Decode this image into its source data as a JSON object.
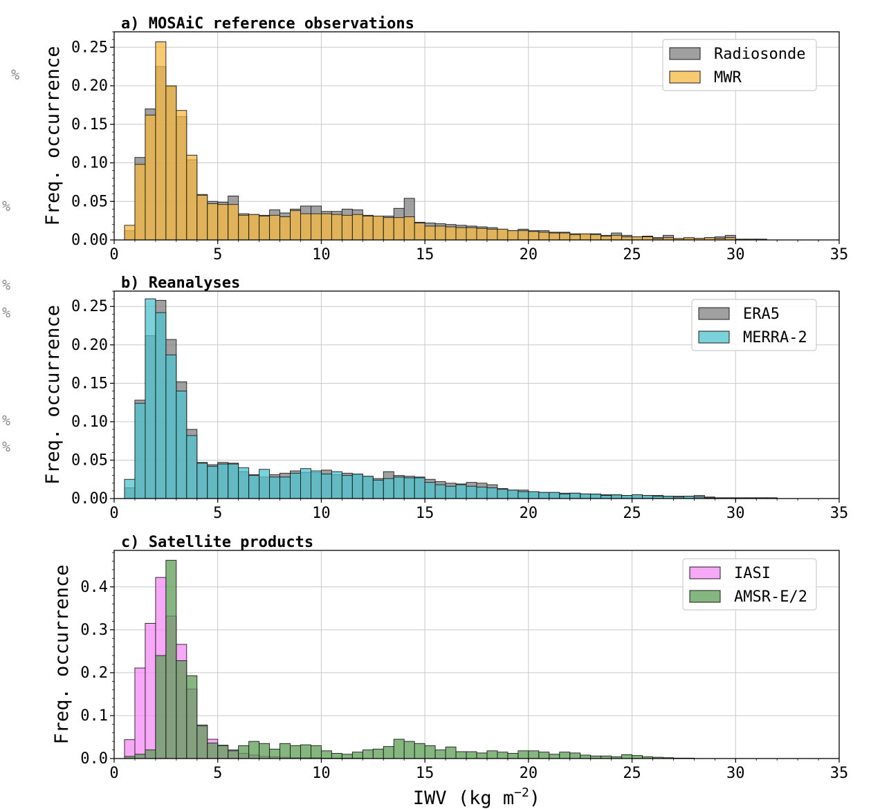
{
  "margin_marks": [
    ")  %",
    "%",
    "%",
    "%",
    "%",
    "%"
  ],
  "chart_data": [
    {
      "type": "bar",
      "title": "a) MOSAiC reference observations",
      "xlabel": "",
      "ylabel": "Freq. occurrence",
      "xlim": [
        0,
        35
      ],
      "ylim": [
        0,
        0.27
      ],
      "xticks": [
        "0",
        "5",
        "10",
        "15",
        "20",
        "25",
        "30",
        "35"
      ],
      "yticks": [
        "0.00",
        "0.05",
        "0.10",
        "0.15",
        "0.20",
        "0.25"
      ],
      "grid": true,
      "legend_position": "top-right",
      "bin_start": 0.5,
      "bin_width": 0.5,
      "series": [
        {
          "name": "Radiosonde",
          "color": "#808080",
          "values": [
            0.012,
            0.107,
            0.17,
            0.225,
            0.199,
            0.16,
            0.104,
            0.059,
            0.05,
            0.049,
            0.057,
            0.034,
            0.033,
            0.032,
            0.039,
            0.035,
            0.04,
            0.044,
            0.044,
            0.037,
            0.037,
            0.04,
            0.039,
            0.032,
            0.031,
            0.031,
            0.041,
            0.054,
            0.023,
            0.022,
            0.021,
            0.02,
            0.019,
            0.018,
            0.017,
            0.016,
            0.014,
            0.012,
            0.014,
            0.012,
            0.012,
            0.01,
            0.01,
            0.008,
            0.007,
            0.008,
            0.006,
            0.009,
            0.006,
            0.004,
            0.005,
            0.003,
            0.006,
            0.001,
            0.002,
            0.002,
            0.003,
            0.004,
            0.006,
            0.001,
            0.001,
            0.001
          ]
        },
        {
          "name": "MWR",
          "color": "#f5b841",
          "values": [
            0.019,
            0.098,
            0.162,
            0.257,
            0.2,
            0.168,
            0.11,
            0.058,
            0.047,
            0.046,
            0.046,
            0.032,
            0.033,
            0.031,
            0.032,
            0.03,
            0.038,
            0.034,
            0.034,
            0.034,
            0.033,
            0.032,
            0.033,
            0.031,
            0.031,
            0.029,
            0.029,
            0.03,
            0.022,
            0.018,
            0.018,
            0.017,
            0.016,
            0.016,
            0.015,
            0.014,
            0.014,
            0.012,
            0.012,
            0.011,
            0.01,
            0.009,
            0.009,
            0.007,
            0.008,
            0.007,
            0.005,
            0.006,
            0.004,
            0.004,
            0.004,
            0.002,
            0.003,
            0.002,
            0.003,
            0.002,
            0.003,
            0.002,
            0.003,
            0.001,
            0.001,
            0.001
          ]
        }
      ]
    },
    {
      "type": "bar",
      "title": "b) Reanalyses",
      "xlabel": "",
      "ylabel": "Freq. occurrence",
      "xlim": [
        0,
        35
      ],
      "ylim": [
        0,
        0.27
      ],
      "xticks": [
        "0",
        "5",
        "10",
        "15",
        "20",
        "25",
        "30",
        "35"
      ],
      "yticks": [
        "0.00",
        "0.05",
        "0.10",
        "0.15",
        "0.20",
        "0.25"
      ],
      "grid": true,
      "legend_position": "top-right",
      "bin_start": 0.5,
      "bin_width": 0.5,
      "series": [
        {
          "name": "ERA5",
          "color": "#808080",
          "values": [
            0.014,
            0.128,
            0.212,
            0.258,
            0.207,
            0.152,
            0.09,
            0.047,
            0.044,
            0.047,
            0.046,
            0.035,
            0.031,
            0.028,
            0.031,
            0.033,
            0.036,
            0.034,
            0.034,
            0.037,
            0.031,
            0.033,
            0.031,
            0.029,
            0.026,
            0.035,
            0.03,
            0.029,
            0.028,
            0.025,
            0.022,
            0.02,
            0.019,
            0.021,
            0.02,
            0.018,
            0.013,
            0.011,
            0.011,
            0.009,
            0.008,
            0.008,
            0.007,
            0.007,
            0.006,
            0.005,
            0.005,
            0.004,
            0.004,
            0.005,
            0.004,
            0.004,
            0.003,
            0.003,
            0.003,
            0.004,
            0.002,
            0.001,
            0.001,
            0.001,
            0.001,
            0.001,
            0.001
          ]
        },
        {
          "name": "MERRA-2",
          "color": "#4fc3cf",
          "values": [
            0.025,
            0.124,
            0.26,
            0.242,
            0.187,
            0.14,
            0.082,
            0.046,
            0.042,
            0.045,
            0.045,
            0.04,
            0.03,
            0.038,
            0.028,
            0.028,
            0.033,
            0.039,
            0.036,
            0.032,
            0.035,
            0.03,
            0.032,
            0.029,
            0.024,
            0.026,
            0.028,
            0.027,
            0.027,
            0.021,
            0.018,
            0.016,
            0.018,
            0.016,
            0.015,
            0.014,
            0.012,
            0.011,
            0.009,
            0.009,
            0.008,
            0.008,
            0.006,
            0.007,
            0.006,
            0.006,
            0.004,
            0.005,
            0.004,
            0.005,
            0.004,
            0.003,
            0.003,
            0.002,
            0.003,
            0.002,
            0.001,
            0.001,
            0.001,
            0.001,
            0.001,
            0.001,
            0.001
          ]
        }
      ]
    },
    {
      "type": "bar",
      "title": "c) Satellite products",
      "xlabel": "IWV (kg m⁻²)",
      "ylabel": "Freq. occurrence",
      "xlim": [
        0,
        35
      ],
      "ylim": [
        0,
        0.485
      ],
      "xticks": [
        "0",
        "5",
        "10",
        "15",
        "20",
        "25",
        "30",
        "35"
      ],
      "yticks": [
        "0.0",
        "0.1",
        "0.2",
        "0.3",
        "0.4"
      ],
      "grid": true,
      "legend_position": "top-right",
      "bin_start": 0.5,
      "bin_width": 0.5,
      "series": [
        {
          "name": "IASI",
          "color": "#f48cf4",
          "values": [
            0.044,
            0.211,
            0.315,
            0.422,
            0.332,
            0.266,
            0.162,
            0.078,
            0.045,
            0.031,
            0.02,
            0.012,
            0.008,
            0.005,
            0.004,
            0.003,
            0.002,
            0.002,
            0.002,
            0.001,
            0.001,
            0.001,
            0.001
          ]
        },
        {
          "name": "AMSR-E/2",
          "color": "#5e9e55",
          "values": [
            0.005,
            0.01,
            0.02,
            0.24,
            0.462,
            0.228,
            0.193,
            0.076,
            0.036,
            0.03,
            0.018,
            0.03,
            0.04,
            0.035,
            0.022,
            0.035,
            0.03,
            0.032,
            0.03,
            0.018,
            0.012,
            0.01,
            0.015,
            0.02,
            0.022,
            0.028,
            0.045,
            0.04,
            0.035,
            0.03,
            0.02,
            0.027,
            0.016,
            0.016,
            0.013,
            0.018,
            0.015,
            0.012,
            0.018,
            0.018,
            0.015,
            0.01,
            0.015,
            0.013,
            0.008,
            0.006,
            0.006,
            0.004,
            0.009,
            0.007,
            0.004,
            0.003,
            0.002,
            0.001,
            0.001
          ]
        }
      ]
    }
  ]
}
